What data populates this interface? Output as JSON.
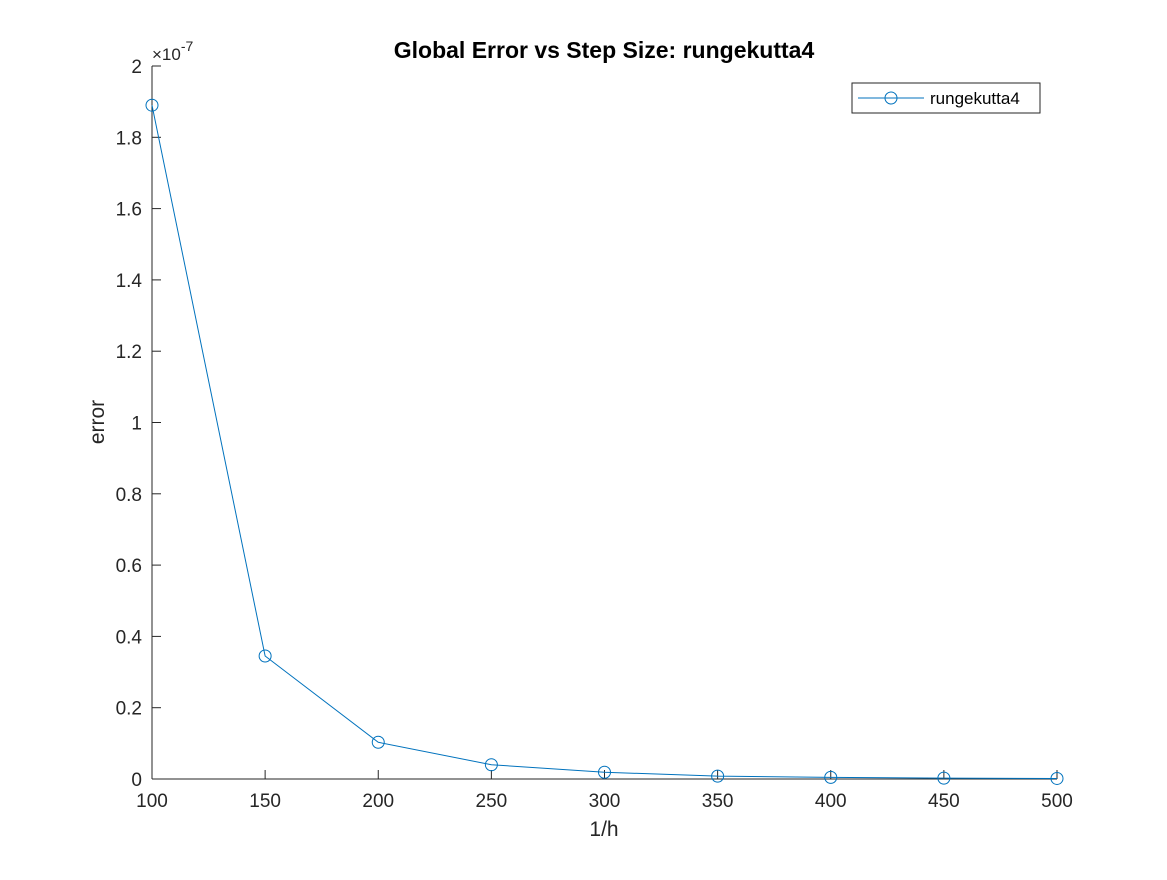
{
  "chart_data": {
    "type": "line",
    "title": "Global Error vs Step Size: rungekutta4",
    "xlabel": "1/h",
    "ylabel": "error",
    "x": [
      100,
      150,
      200,
      250,
      300,
      350,
      400,
      450,
      500
    ],
    "series": [
      {
        "name": "rungekutta4",
        "marker": "circle",
        "color": "#0072BD",
        "values": [
          1.89e-07,
          3.45e-08,
          1.03e-08,
          4e-09,
          1.9e-09,
          8e-10,
          4.5e-10,
          2.5e-10,
          1.5e-10
        ]
      }
    ],
    "xlim": [
      100,
      500
    ],
    "ylim": [
      0,
      2e-07
    ],
    "xticks": [
      100,
      150,
      200,
      250,
      300,
      350,
      400,
      450,
      500
    ],
    "xtick_labels": [
      "100",
      "150",
      "200",
      "250",
      "300",
      "350",
      "400",
      "450",
      "500"
    ],
    "yticks": [
      0,
      2e-08,
      4e-08,
      6e-08,
      8e-08,
      1e-07,
      1.2e-07,
      1.4e-07,
      1.6e-07,
      1.8e-07,
      2e-07
    ],
    "ytick_labels": [
      "0",
      "0.2",
      "0.4",
      "0.6",
      "0.8",
      "1",
      "1.2",
      "1.4",
      "1.6",
      "1.8",
      "2"
    ],
    "y_exponent_prefix": "×10",
    "y_exponent": "-7",
    "y_scale_factor": 1e-07,
    "grid": false,
    "legend_position": "top-right",
    "colors": {
      "series": "#0072BD",
      "axes": "#262626",
      "title": "#000000",
      "legend_border": "#262626"
    }
  }
}
